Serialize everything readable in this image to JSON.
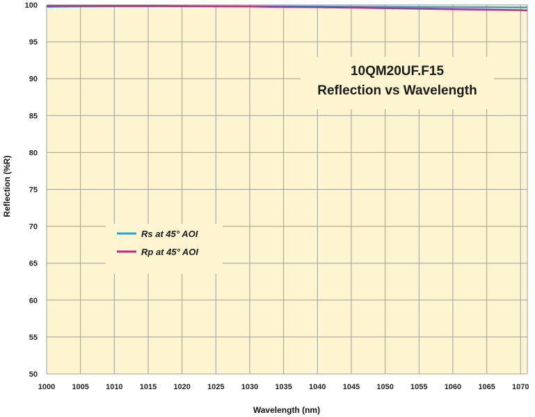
{
  "chart_data": {
    "type": "line",
    "title": "10QM20UF.F15",
    "subtitle": "Reflection vs Wavelength",
    "xlabel": "Wavelength (nm)",
    "ylabel": "Reflection (%R)",
    "xlim": [
      1000,
      1071
    ],
    "ylim": [
      50,
      100
    ],
    "xticks": [
      1000,
      1005,
      1010,
      1015,
      1020,
      1025,
      1030,
      1035,
      1040,
      1045,
      1050,
      1055,
      1060,
      1065,
      1070
    ],
    "yticks": [
      50,
      55,
      60,
      65,
      70,
      75,
      80,
      85,
      90,
      95,
      100
    ],
    "grid": true,
    "legend_position": "center-left",
    "background_color": "#FCF5CF",
    "grid_color": "#9E9E9E",
    "series": [
      {
        "name": "Rs at 45° AOI",
        "color": "#1EA7E0",
        "x": [
          1000,
          1005,
          1010,
          1015,
          1020,
          1025,
          1030,
          1035,
          1040,
          1045,
          1050,
          1055,
          1060,
          1065,
          1070,
          1071
        ],
        "y": [
          99.75,
          99.78,
          99.8,
          99.8,
          99.8,
          99.8,
          99.8,
          99.8,
          99.78,
          99.76,
          99.74,
          99.72,
          99.7,
          99.68,
          99.65,
          99.65
        ]
      },
      {
        "name": "Rp at 45° AOI",
        "color": "#C0287F",
        "x": [
          1000,
          1005,
          1010,
          1015,
          1020,
          1025,
          1030,
          1035,
          1040,
          1045,
          1050,
          1055,
          1060,
          1065,
          1070,
          1071
        ],
        "y": [
          99.85,
          99.85,
          99.85,
          99.85,
          99.82,
          99.8,
          99.78,
          99.72,
          99.68,
          99.62,
          99.55,
          99.48,
          99.42,
          99.35,
          99.28,
          99.25
        ]
      }
    ]
  }
}
